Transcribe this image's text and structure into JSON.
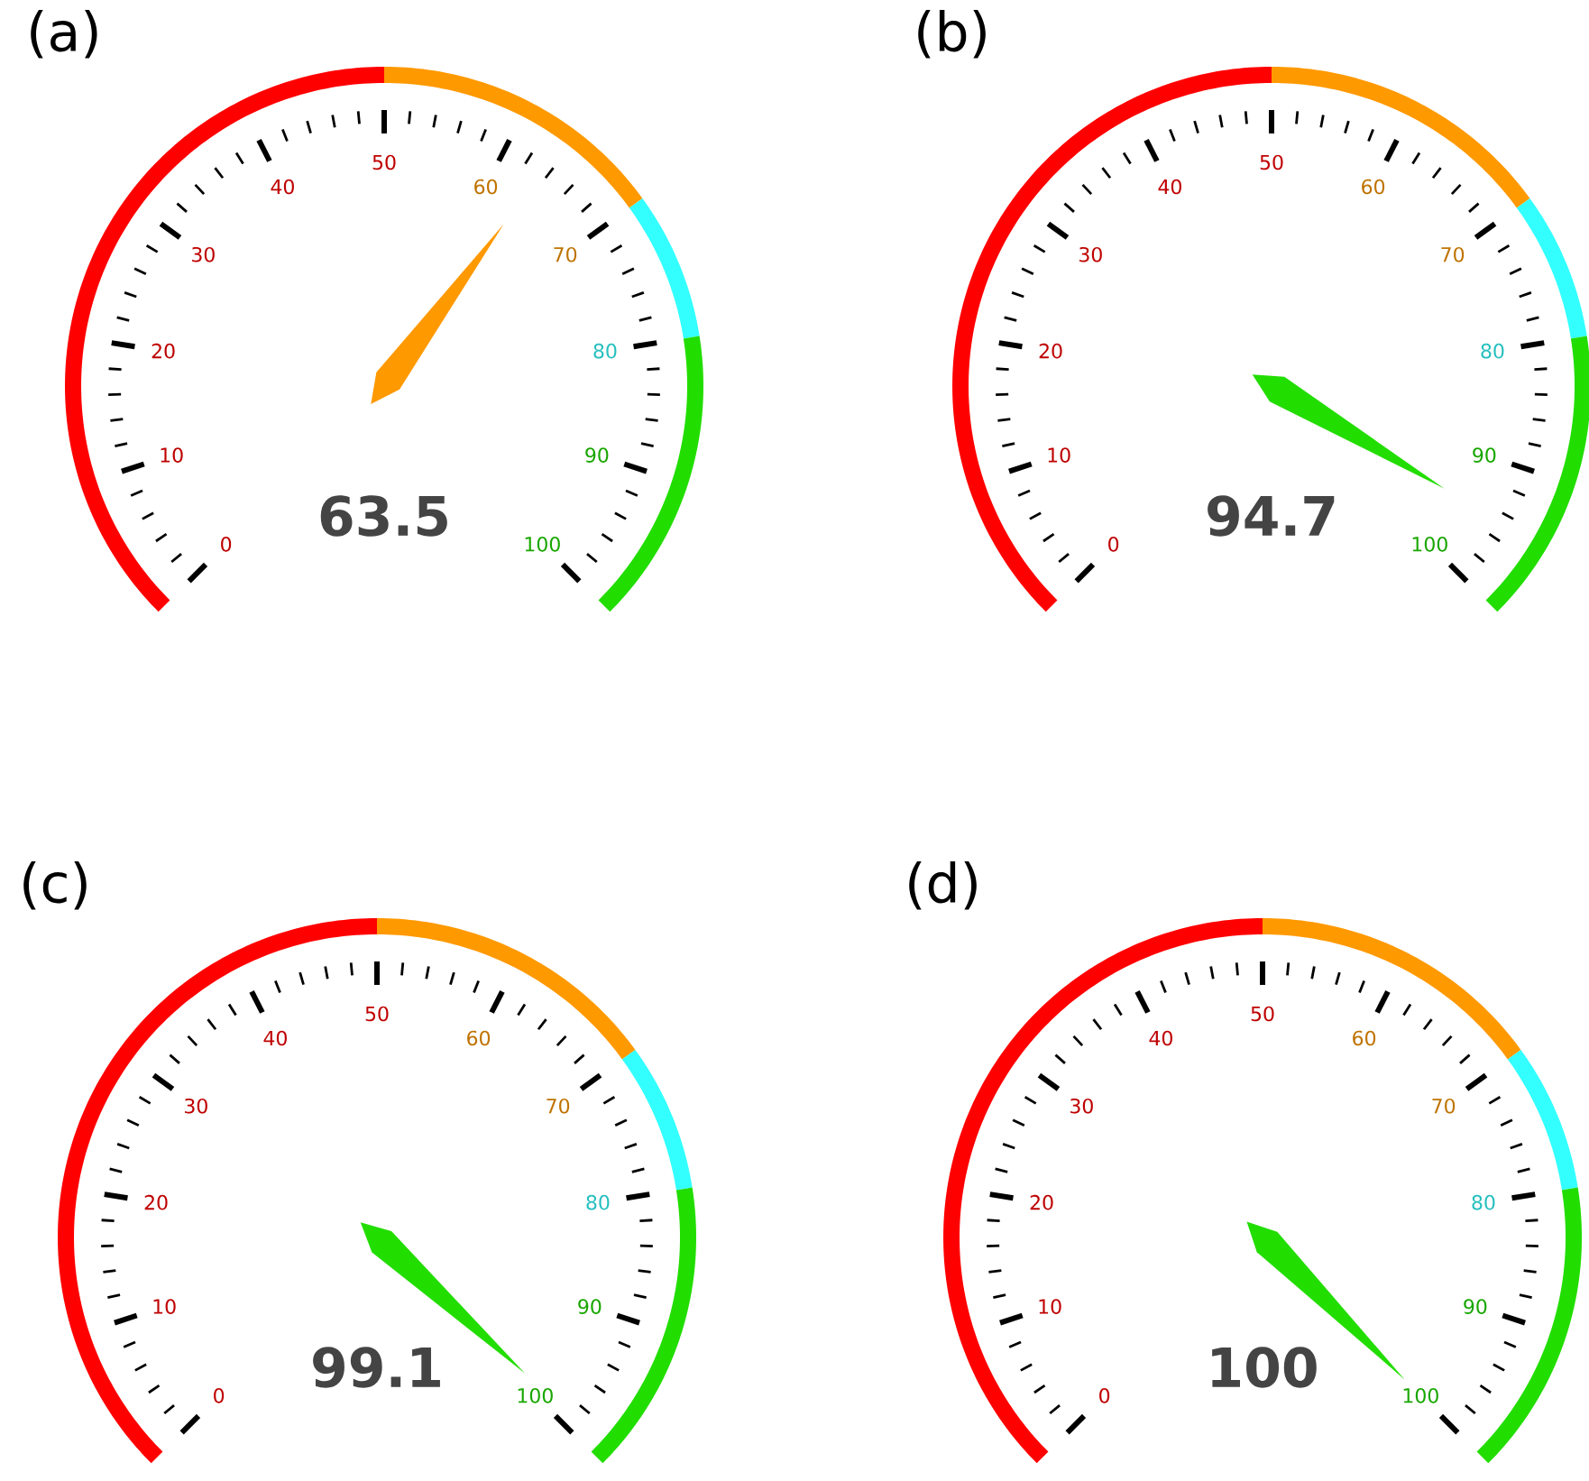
{
  "chart_data": [
    {
      "type": "donut",
      "title": "(a)",
      "categories": [
        null,
        null,
        null,
        null
      ],
      "values": [
        50,
        20,
        10,
        20
      ],
      "colors": [
        "#ff0000",
        "#ff9900",
        "#33ffff",
        "#22dd00"
      ],
      "annotations": [
        "0",
        "10",
        "20",
        "30",
        "40",
        "50",
        "60",
        "70",
        "80",
        "90",
        "100",
        "63.5"
      ]
    },
    {
      "type": "donut",
      "title": "(b)",
      "categories": [
        null,
        null,
        null,
        null
      ],
      "values": [
        50,
        20,
        10,
        20
      ],
      "colors": [
        "#ff0000",
        "#ff9900",
        "#33ffff",
        "#22dd00"
      ],
      "annotations": [
        "0",
        "10",
        "20",
        "30",
        "40",
        "50",
        "60",
        "70",
        "80",
        "90",
        "100",
        "94.7"
      ]
    },
    {
      "type": "donut",
      "title": "(c)",
      "categories": [
        null,
        null,
        null,
        null
      ],
      "values": [
        50,
        20,
        10,
        20
      ],
      "colors": [
        "#ff0000",
        "#ff9900",
        "#33ffff",
        "#22dd00"
      ],
      "annotations": [
        "0",
        "10",
        "20",
        "30",
        "40",
        "50",
        "60",
        "70",
        "80",
        "90",
        "100",
        "99.1"
      ]
    },
    {
      "type": "donut",
      "title": "(d)",
      "categories": [
        null,
        null,
        null,
        null
      ],
      "values": [
        50,
        20,
        10,
        20
      ],
      "colors": [
        "#ff0000",
        "#ff9900",
        "#33ffff",
        "#22dd00"
      ],
      "annotations": [
        "0",
        "10",
        "20",
        "30",
        "40",
        "50",
        "60",
        "70",
        "80",
        "90",
        "100",
        "100"
      ]
    }
  ]
}
